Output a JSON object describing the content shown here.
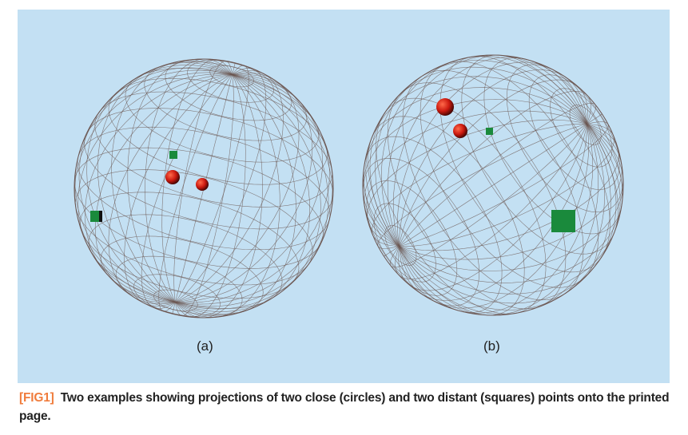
{
  "figure": {
    "panels": [
      {
        "label": "(a)"
      },
      {
        "label": "(b)"
      }
    ],
    "colors": {
      "background": "#c3e0f3",
      "wireframe": "#6b5550",
      "close_points": "#cc1a10",
      "distant_points": "#1a8a3c",
      "caption_tag": "#f07c3c"
    }
  },
  "caption": {
    "tag": "[FIG1]",
    "text": "Two examples showing projections of two close (circles) and two distant (squares) points onto the printed page."
  }
}
